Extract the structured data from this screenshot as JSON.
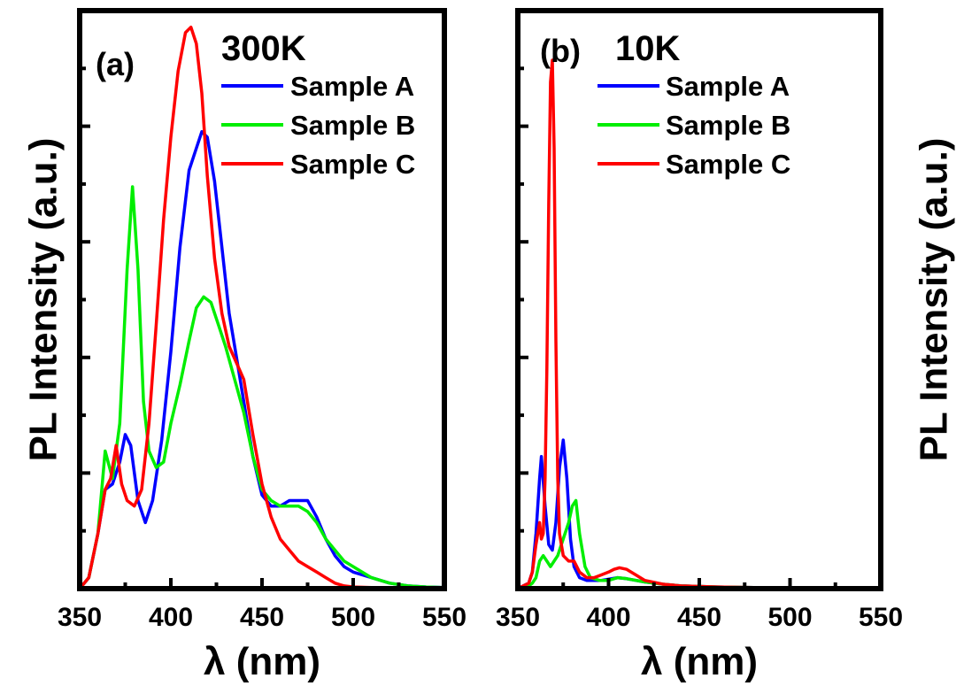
{
  "chart_data": [
    {
      "type": "line",
      "panel": "(a)",
      "title": "300K",
      "xlabel": "λ (nm)",
      "ylabel": "PL Intensity (a.u.)",
      "xlim": [
        350,
        550
      ],
      "ylim": [
        0,
        1.05
      ],
      "xticks": [
        350,
        400,
        450,
        500,
        550
      ],
      "legend": "top-right",
      "series": [
        {
          "name": "Sample A",
          "color": "#0000ff",
          "x": [
            350,
            355,
            360,
            364,
            368,
            372,
            375,
            378,
            382,
            386,
            390,
            395,
            400,
            405,
            410,
            414,
            417,
            420,
            424,
            428,
            432,
            436,
            440,
            445,
            450,
            455,
            460,
            465,
            470,
            475,
            480,
            485,
            490,
            495,
            500,
            510,
            520,
            530,
            540,
            550
          ],
          "y": [
            0.0,
            0.02,
            0.1,
            0.18,
            0.19,
            0.23,
            0.28,
            0.26,
            0.16,
            0.12,
            0.16,
            0.27,
            0.43,
            0.62,
            0.76,
            0.8,
            0.83,
            0.82,
            0.74,
            0.62,
            0.5,
            0.42,
            0.34,
            0.24,
            0.17,
            0.15,
            0.15,
            0.16,
            0.16,
            0.16,
            0.13,
            0.09,
            0.06,
            0.04,
            0.03,
            0.02,
            0.01,
            0.005,
            0.003,
            0.002
          ]
        },
        {
          "name": "Sample B",
          "color": "#00ee00",
          "x": [
            350,
            355,
            360,
            364,
            368,
            372,
            376,
            379,
            382,
            385,
            388,
            392,
            396,
            400,
            405,
            410,
            414,
            418,
            422,
            426,
            430,
            435,
            440,
            445,
            450,
            455,
            460,
            465,
            470,
            475,
            480,
            485,
            490,
            495,
            500,
            510,
            520,
            530,
            540,
            550
          ],
          "y": [
            0.0,
            0.02,
            0.1,
            0.25,
            0.2,
            0.3,
            0.58,
            0.73,
            0.58,
            0.34,
            0.25,
            0.22,
            0.23,
            0.3,
            0.37,
            0.45,
            0.51,
            0.53,
            0.52,
            0.48,
            0.44,
            0.38,
            0.32,
            0.24,
            0.18,
            0.16,
            0.15,
            0.15,
            0.15,
            0.14,
            0.12,
            0.09,
            0.07,
            0.05,
            0.04,
            0.02,
            0.01,
            0.005,
            0.003,
            0.002
          ]
        },
        {
          "name": "Sample C",
          "color": "#ff0000",
          "x": [
            350,
            355,
            360,
            364,
            367,
            370,
            373,
            376,
            380,
            384,
            388,
            392,
            396,
            400,
            404,
            408,
            411,
            414,
            417,
            420,
            424,
            428,
            432,
            436,
            440,
            445,
            450,
            455,
            460,
            465,
            470,
            475,
            480,
            485,
            490,
            495,
            500,
            510,
            520,
            530,
            550
          ],
          "y": [
            0.0,
            0.02,
            0.1,
            0.18,
            0.2,
            0.26,
            0.19,
            0.16,
            0.15,
            0.18,
            0.3,
            0.48,
            0.67,
            0.82,
            0.94,
            1.01,
            1.02,
            0.99,
            0.9,
            0.75,
            0.6,
            0.5,
            0.44,
            0.41,
            0.38,
            0.28,
            0.19,
            0.13,
            0.09,
            0.07,
            0.05,
            0.04,
            0.03,
            0.02,
            0.01,
            0.005,
            0.003,
            0.002,
            0.001,
            0.0,
            0.0
          ]
        }
      ]
    },
    {
      "type": "line",
      "panel": "(b)",
      "title": "10K",
      "xlabel": "λ (nm)",
      "ylabel": "PL Intensity (a.u.)",
      "xlim": [
        350,
        550
      ],
      "ylim": [
        0,
        1.05
      ],
      "xticks": [
        350,
        400,
        450,
        500,
        550
      ],
      "legend": "top-left",
      "series": [
        {
          "name": "Sample A",
          "color": "#0000ff",
          "x": [
            350,
            356,
            358,
            360,
            362,
            363,
            365,
            367,
            369,
            371,
            373,
            375,
            377,
            379,
            381,
            384,
            388,
            392,
            396,
            400,
            405,
            410,
            420,
            430,
            440,
            460,
            480,
            500,
            550
          ],
          "y": [
            0.0,
            0.01,
            0.03,
            0.1,
            0.2,
            0.24,
            0.15,
            0.08,
            0.07,
            0.12,
            0.22,
            0.27,
            0.2,
            0.09,
            0.04,
            0.02,
            0.015,
            0.015,
            0.015,
            0.017,
            0.02,
            0.018,
            0.012,
            0.008,
            0.005,
            0.003,
            0.002,
            0.001,
            0.0
          ]
        },
        {
          "name": "Sample B",
          "color": "#00ee00",
          "x": [
            350,
            356,
            358,
            360,
            362,
            364,
            366,
            368,
            370,
            372,
            374,
            376,
            378,
            380,
            382,
            384,
            387,
            390,
            395,
            400,
            405,
            410,
            420,
            430,
            440,
            460,
            480,
            500,
            550
          ],
          "y": [
            0.0,
            0.005,
            0.01,
            0.02,
            0.05,
            0.06,
            0.05,
            0.04,
            0.05,
            0.06,
            0.08,
            0.1,
            0.12,
            0.15,
            0.16,
            0.1,
            0.04,
            0.02,
            0.015,
            0.015,
            0.02,
            0.018,
            0.012,
            0.008,
            0.005,
            0.003,
            0.002,
            0.001,
            0.0
          ]
        },
        {
          "name": "Sample C",
          "color": "#ff0000",
          "x": [
            350,
            356,
            358,
            360,
            361,
            362,
            363,
            364,
            365,
            366,
            367,
            368,
            369,
            370,
            371,
            372,
            373,
            375,
            378,
            381,
            384,
            388,
            392,
            396,
            400,
            403,
            406,
            410,
            415,
            420,
            430,
            440,
            460,
            480,
            500,
            550
          ],
          "y": [
            0.0,
            0.01,
            0.03,
            0.08,
            0.1,
            0.12,
            0.09,
            0.1,
            0.2,
            0.4,
            0.7,
            0.92,
            0.96,
            0.8,
            0.45,
            0.2,
            0.1,
            0.06,
            0.05,
            0.05,
            0.03,
            0.02,
            0.02,
            0.025,
            0.03,
            0.035,
            0.038,
            0.035,
            0.025,
            0.015,
            0.008,
            0.005,
            0.003,
            0.002,
            0.001,
            0.0
          ]
        }
      ]
    }
  ]
}
